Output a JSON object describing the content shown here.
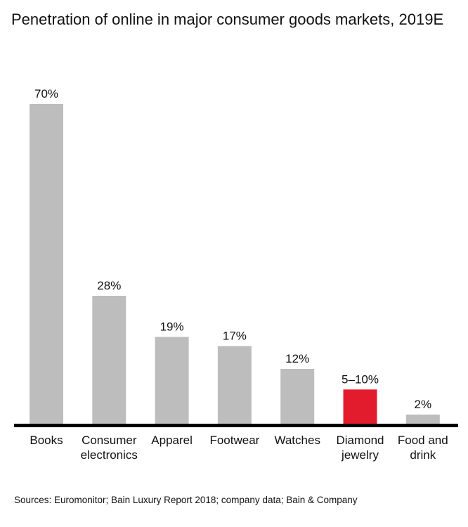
{
  "chart_data": {
    "type": "bar",
    "title": "Penetration of online in major consumer goods markets, 2019E",
    "categories": [
      [
        "Books"
      ],
      [
        "Consumer",
        "electronics"
      ],
      [
        "Apparel"
      ],
      [
        "Footwear"
      ],
      [
        "Watches"
      ],
      [
        "Diamond",
        "jewelry"
      ],
      [
        "Food and",
        "drink"
      ]
    ],
    "values": [
      70,
      28,
      19,
      17,
      12,
      7.5,
      2
    ],
    "value_labels": [
      "70%",
      "28%",
      "19%",
      "17%",
      "12%",
      "5–10%",
      "2%"
    ],
    "bar_colors": [
      "#bdbdbd",
      "#bdbdbd",
      "#bdbdbd",
      "#bdbdbd",
      "#bdbdbd",
      "#e31c2d",
      "#bdbdbd"
    ],
    "ylim": [
      0,
      70
    ],
    "grid": false,
    "legend": "none",
    "xlabel": "",
    "ylabel": ""
  },
  "source": "Sources: Euromonitor; Bain Luxury Report 2018; company data; Bain & Company",
  "colors": {
    "bar": "#bdbdbd",
    "highlight": "#e31c2d",
    "baseline": "#000000"
  }
}
